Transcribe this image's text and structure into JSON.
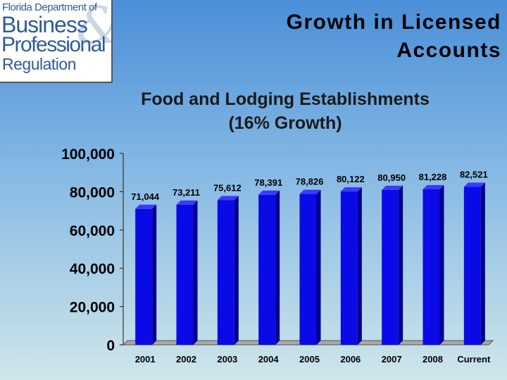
{
  "logo": {
    "line1": "Florida Department of",
    "line2": "Business",
    "line3": "Professional",
    "line4": "Regulation"
  },
  "slide": {
    "title_line1": "Growth in Licensed",
    "title_line2": "Accounts"
  },
  "chart_data": {
    "type": "bar",
    "title_line1": "Food and Lodging Establishments",
    "title_line2": "(16% Growth)",
    "categories": [
      "2001",
      "2002",
      "2003",
      "2004",
      "2005",
      "2006",
      "2007",
      "2008",
      "Current"
    ],
    "values": [
      71044,
      73211,
      75612,
      78391,
      78826,
      80122,
      80950,
      81228,
      82521
    ],
    "value_labels": [
      "71,044",
      "73,211",
      "75,612",
      "78,391",
      "78,826",
      "80,122",
      "80,950",
      "81,228",
      "82,521"
    ],
    "ylim": [
      0,
      100000
    ],
    "yticks": [
      0,
      20000,
      40000,
      60000,
      80000,
      100000
    ],
    "ytick_labels": [
      "0",
      "20,000",
      "40,000",
      "60,000",
      "80,000",
      "100,000"
    ],
    "bar_color": "#0a0ae6",
    "bar_top_color": "#3a3aff",
    "bar_side_color": "#00008c",
    "grid": false,
    "three_d": true
  }
}
